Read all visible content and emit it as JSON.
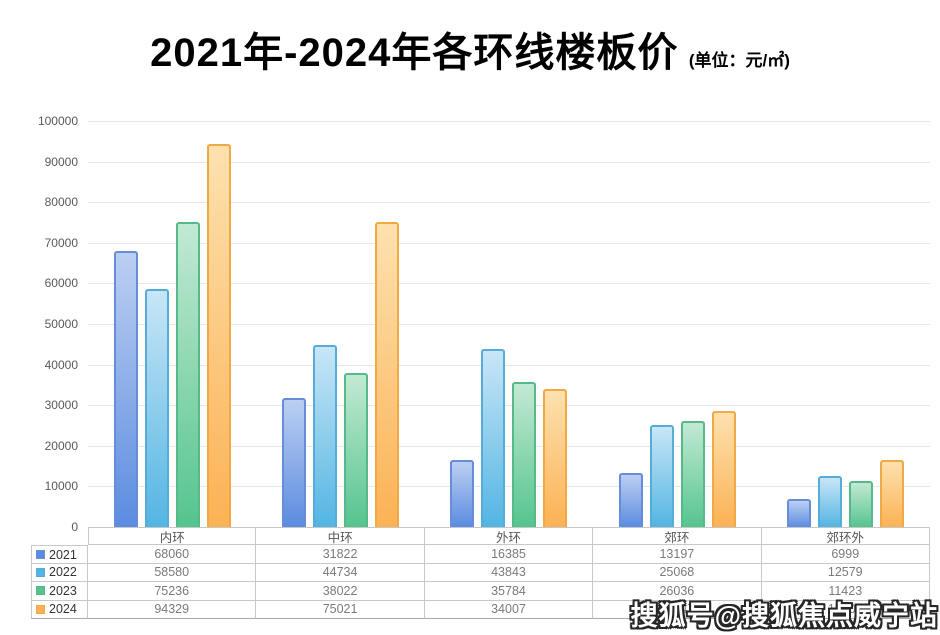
{
  "header": {
    "title": "2021年-2024年各环线楼板价",
    "subtitle": "(单位：元/㎡)"
  },
  "watermark": "搜狐号@搜狐焦点威宁站",
  "chart_data": {
    "type": "bar",
    "title": "2021年-2024年各环线楼板价",
    "unit_label": "元/㎡",
    "categories": [
      "内环",
      "中环",
      "外环",
      "郊环",
      "郊环外"
    ],
    "series": [
      {
        "name": "2021",
        "values": [
          68060,
          31822,
          16385,
          13197,
          6999
        ],
        "color": "#5b8ce0",
        "color_light": "#bccff2",
        "border": "#678dd8"
      },
      {
        "name": "2022",
        "values": [
          58580,
          44734,
          43843,
          25068,
          12579
        ],
        "color": "#53b5e3",
        "color_light": "#c8e6f6",
        "border": "#55acd8"
      },
      {
        "name": "2023",
        "values": [
          75236,
          38022,
          35784,
          26036,
          11423
        ],
        "color": "#55c48f",
        "color_light": "#c2e9d3",
        "border": "#55b98a"
      },
      {
        "name": "2024",
        "values": [
          94329,
          75021,
          34007,
          28647,
          16500
        ],
        "color": "#fbb254",
        "color_light": "#fde1af",
        "border": "#f2a843"
      }
    ],
    "ylim": [
      0,
      100000
    ],
    "ytick_step": 10000,
    "grid": true,
    "grid_color": "#e7e7e7",
    "legend_position": "table-left-column"
  }
}
